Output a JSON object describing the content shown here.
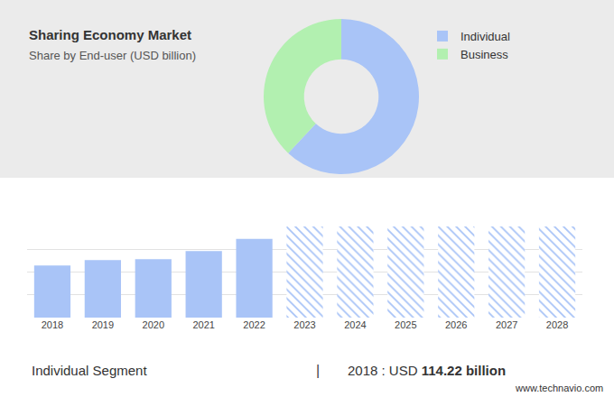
{
  "chart_data": [
    {
      "type": "pie",
      "title": "Sharing Economy Market",
      "subtitle": "Share by End-user (USD billion)",
      "categories": [
        "Individual",
        "Business"
      ],
      "values": [
        62,
        38
      ],
      "colors": [
        "#a9c4f7",
        "#b2f0b0"
      ],
      "legend": "right",
      "data_labels": false
    },
    {
      "type": "bar",
      "categories": [
        "2018",
        "2019",
        "2020",
        "2021",
        "2022",
        "2023",
        "2024",
        "2025",
        "2026",
        "2027",
        "2028"
      ],
      "series": [
        {
          "color": "#a9c4f7",
          "values": [
            114.22,
            126,
            128,
            146,
            173,
            null,
            null,
            null,
            null,
            null,
            null
          ]
        },
        {
          "color": "#a9c4f7",
          "marker": "hatched",
          "values": [
            null,
            null,
            null,
            null,
            null,
            200,
            200,
            200,
            200,
            200,
            200
          ]
        }
      ],
      "ylim": [
        0,
        200
      ],
      "yticks": [
        0,
        50,
        100,
        150,
        200
      ],
      "grid": true,
      "tick_labels": "x"
    }
  ],
  "highlight": {
    "label": "Individual Segment",
    "divider": "|",
    "text": "2018 : USD",
    "value": "114.22 billion"
  },
  "source": "www.technavio.com"
}
